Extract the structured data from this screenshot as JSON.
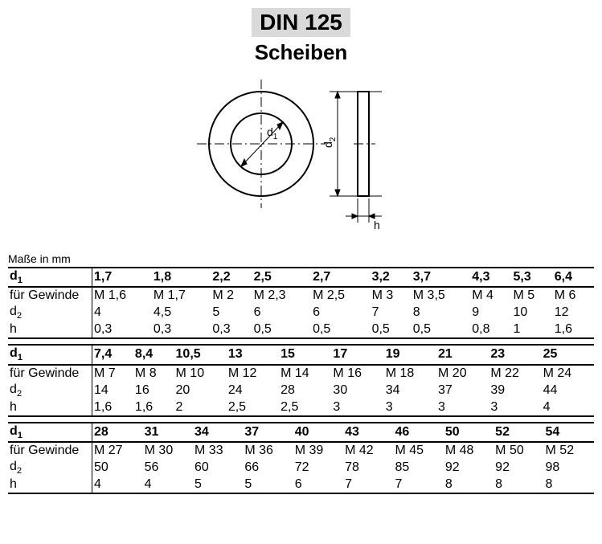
{
  "title": "DIN 125",
  "subtitle": "Scheiben",
  "units_note": "Maße in mm",
  "diagram": {
    "label_d1": "d₁",
    "label_d2": "d₂",
    "label_h": "h",
    "stroke": "#000000",
    "fill": "#ffffff"
  },
  "row_labels": {
    "d1": "d",
    "d1_sub": "1",
    "thread": "für Gewinde",
    "d2": "d",
    "d2_sub": "2",
    "h": "h"
  },
  "blocks": [
    {
      "d1": [
        "1,7",
        "1,8",
        "2,2",
        "2,5",
        "2,7",
        "3,2",
        "3,7",
        "4,3",
        "5,3",
        "6,4"
      ],
      "thread": [
        "M 1,6",
        "M 1,7",
        "M 2",
        "M 2,3",
        "M 2,5",
        "M 3",
        "M 3,5",
        "M 4",
        "M 5",
        "M 6"
      ],
      "d2": [
        "4",
        "4,5",
        "5",
        "6",
        "6",
        "7",
        "8",
        "9",
        "10",
        "12"
      ],
      "h": [
        "0,3",
        "0,3",
        "0,3",
        "0,5",
        "0,5",
        "0,5",
        "0,5",
        "0,8",
        "1",
        "1,6"
      ]
    },
    {
      "d1": [
        "7,4",
        "8,4",
        "10,5",
        "13",
        "15",
        "17",
        "19",
        "21",
        "23",
        "25"
      ],
      "thread": [
        "M 7",
        "M 8",
        "M 10",
        "M 12",
        "M 14",
        "M 16",
        "M 18",
        "M 20",
        "M 22",
        "M 24"
      ],
      "d2": [
        "14",
        "16",
        "20",
        "24",
        "28",
        "30",
        "34",
        "37",
        "39",
        "44"
      ],
      "h": [
        "1,6",
        "1,6",
        "2",
        "2,5",
        "2,5",
        "3",
        "3",
        "3",
        "3",
        "4"
      ]
    },
    {
      "d1": [
        "28",
        "31",
        "34",
        "37",
        "40",
        "43",
        "46",
        "50",
        "52",
        "54"
      ],
      "thread": [
        "M 27",
        "M 30",
        "M 33",
        "M 36",
        "M 39",
        "M 42",
        "M 45",
        "M 48",
        "M 50",
        "M 52"
      ],
      "d2": [
        "50",
        "56",
        "60",
        "66",
        "72",
        "78",
        "85",
        "92",
        "92",
        "98"
      ],
      "h": [
        "4",
        "4",
        "5",
        "5",
        "6",
        "7",
        "7",
        "8",
        "8",
        "8"
      ]
    }
  ],
  "style": {
    "col_count": 10,
    "title_bg": "#d9d9d9",
    "text_color": "#000000",
    "title_fontsize": 28,
    "subtitle_fontsize": 26,
    "table_fontsize": 16,
    "note_fontsize": 14,
    "border_color": "#000000"
  }
}
